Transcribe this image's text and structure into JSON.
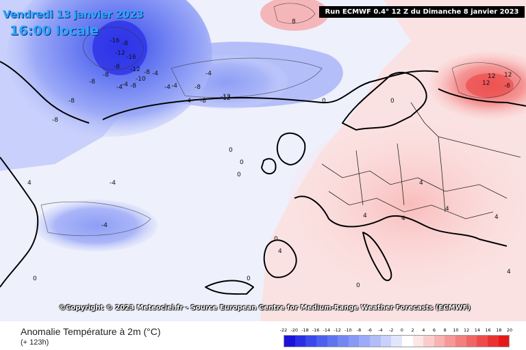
{
  "header": {
    "valid_date": "Vendredi 13 janvier 2023",
    "local_time": "16:00 locale",
    "run_info": "Run ECMWF 0.4° 12 Z du Dimanche 8 janvier 2023"
  },
  "footer": {
    "copyright": "©Copyright © 2023 Meteociel.fr - Source European Centre for Medium-Range Weather Forecasts (ECMWF)",
    "parameter_title": "Anomalie Température à 2m (°C)",
    "lead_time": "(+ 123h)"
  },
  "legend": {
    "unit": "°C",
    "labels": [
      "-22",
      "-20",
      "-18",
      "-16",
      "-14",
      "-12",
      "-10",
      "-8",
      "-6",
      "-4",
      "-2",
      "0",
      "2",
      "4",
      "6",
      "8",
      "10",
      "12",
      "14",
      "16",
      "18",
      "20"
    ],
    "colors": [
      "#1a12d9",
      "#2a2ee6",
      "#3a48ec",
      "#4c60ef",
      "#5f74f1",
      "#7486f3",
      "#8898f5",
      "#9caaf7",
      "#b2bcf9",
      "#c8d0fb",
      "#e2e6fd",
      "#ffffff",
      "#fde6e6",
      "#fbcccc",
      "#f9b2b2",
      "#f79898",
      "#f47f7f",
      "#f16565",
      "#ee4c4c",
      "#eb3232",
      "#e81818"
    ]
  },
  "map": {
    "contour_labels": [
      "-16",
      "-8",
      "-12",
      "-16",
      "-8",
      "-8",
      "-12",
      "-10",
      "-8",
      "-4",
      "-8",
      "-4",
      "-4",
      "-8",
      "-12",
      "-8",
      "-8",
      "-4",
      "-4",
      "-4",
      "-4",
      "-8",
      "8",
      "-8",
      "-4",
      "12",
      "-12",
      "12",
      "-8",
      "12",
      "-4",
      "0",
      "0",
      "0",
      "4",
      "4",
      "4",
      "0",
      "4",
      "4",
      "0",
      "0",
      "4",
      "4",
      "0",
      "4",
      "0",
      "0"
    ]
  }
}
